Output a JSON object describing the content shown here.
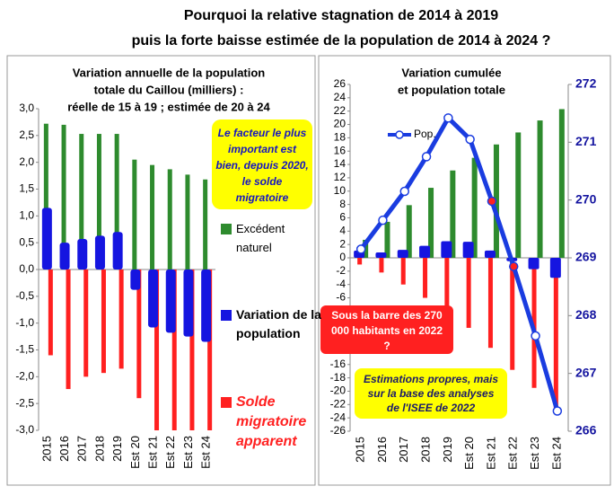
{
  "header": {
    "title": [
      "Pourquoi la relative stagnation de 2014 à 2019",
      "puis la forte baisse estimée de la population de 2014 à 2024 ?"
    ]
  },
  "chart_data": [
    {
      "type": "bar",
      "title": [
        "Variation annuelle de la population",
        "totale du Caillou (milliers) :",
        "réelle de 15 à 19 ; estimée de 20 à 24"
      ],
      "categories": [
        "2015",
        "2016",
        "2017",
        "2018",
        "2019",
        "Est 20",
        "Est 21",
        "Est 22",
        "Est 23",
        "Est 24"
      ],
      "series": [
        {
          "name": "Excédent naturel",
          "color": "#2e8b2e",
          "values": [
            2.72,
            2.7,
            2.53,
            2.53,
            2.53,
            2.05,
            1.95,
            1.87,
            1.77,
            1.68
          ]
        },
        {
          "name": "Variation de la population",
          "color": "#1515e0",
          "values": [
            1.15,
            0.5,
            0.57,
            0.63,
            0.7,
            -0.38,
            -1.08,
            -1.18,
            -1.25,
            -1.35
          ]
        },
        {
          "name": "Solde migratoire apparent",
          "color": "#ff2020",
          "values": [
            -1.6,
            -2.23,
            -2.0,
            -1.93,
            -1.85,
            -2.4,
            -3.03,
            -3.05,
            -3.02,
            -3.03
          ]
        }
      ],
      "ylim": [
        -3,
        3
      ],
      "yticks": [
        {
          "value": 3,
          "label": "3,0"
        },
        {
          "value": 2.5,
          "label": "2,5"
        },
        {
          "value": 2,
          "label": "2,0"
        },
        {
          "value": 1.5,
          "label": "1,5"
        },
        {
          "value": 1,
          "label": "1,0"
        },
        {
          "value": 0.5,
          "label": "0,5"
        },
        {
          "value": 0,
          "label": "0,0"
        },
        {
          "value": -0.5,
          "label": "-0,5"
        },
        {
          "value": -1,
          "label": "-1,0"
        },
        {
          "value": -1.5,
          "label": "-1,5"
        },
        {
          "value": -2,
          "label": "-2,0"
        },
        {
          "value": -2.5,
          "label": "-2,5"
        },
        {
          "value": -3,
          "label": "-3,0"
        }
      ],
      "annotation": "Le facteur le plus important est bien, depuis 2020, le solde migratoire"
    },
    {
      "type": "combo",
      "title": [
        "Variation cumulée",
        "et population totale"
      ],
      "categories": [
        "2015",
        "2016",
        "2017",
        "2018",
        "2019",
        "Est 20",
        "Est 21",
        "Est 22",
        "Est 23",
        "Est 24"
      ],
      "series": [
        {
          "color": "#2e8b2e",
          "values": [
            2.7,
            5.4,
            7.9,
            10.5,
            13.1,
            15.0,
            17.0,
            18.8,
            20.6,
            22.3
          ]
        },
        {
          "color": "#ff2020",
          "values": [
            -1.0,
            -2.2,
            -4.0,
            -6.0,
            -8.0,
            -10.5,
            -13.5,
            -16.8,
            -19.5,
            -22.5
          ]
        },
        {
          "color": "#1515e0",
          "values": [
            1.1,
            0.8,
            1.2,
            1.8,
            2.5,
            2.4,
            1.1,
            -0.5,
            -1.7,
            -3.0
          ]
        },
        {
          "name": "Pop.",
          "color": "#1a3ce0",
          "axis": "y2",
          "values": [
            269.15,
            269.65,
            270.15,
            270.75,
            271.42,
            271.05,
            269.98,
            268.85,
            267.65,
            266.35
          ],
          "marker_fills": [
            "#ffffff",
            "#ffffff",
            "#ffffff",
            "#ffffff",
            "#ffffff",
            "#ffffff",
            "#ff2020",
            "#ff2020",
            "#ffffff",
            "#ffffff"
          ]
        }
      ],
      "ylim": [
        -26,
        26
      ],
      "yticks": [
        26,
        24,
        22,
        20,
        18,
        16,
        14,
        12,
        10,
        8,
        6,
        4,
        2,
        0,
        -2,
        -4,
        -6,
        -8,
        -10,
        -12,
        -14,
        -16,
        -18,
        -20,
        -22,
        -24,
        -26
      ],
      "y2lim": [
        266,
        272
      ],
      "y2ticks": [
        266,
        267,
        268,
        269,
        270,
        271,
        272
      ],
      "annotations": [
        "Sous la barre des 270 000 habitants en 2022 ?",
        "Estimations propres, mais sur la base des analyses de l'ISEE de 2022"
      ]
    }
  ]
}
